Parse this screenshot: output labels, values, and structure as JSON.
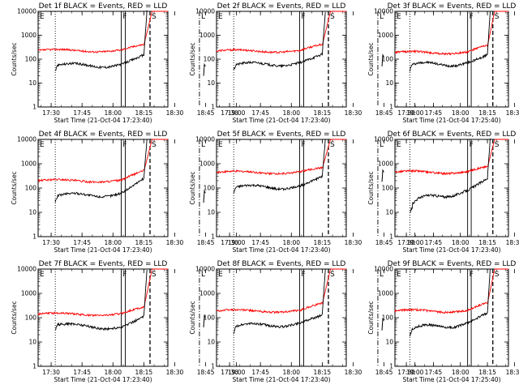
{
  "figure": {
    "panels": [
      {
        "id": 1,
        "title": "Det 1f BLACK = Events, RED = LLD",
        "ylabel": "Counts/sec",
        "xlabel": "Start Time (21-Oct-04 17:23:40)",
        "events_start": 52,
        "events_level_1800": 60,
        "events_at_flare": 150,
        "lld_base": 230,
        "lld_at_flare": 380,
        "events_tail": 20,
        "lld_tail": 210
      },
      {
        "id": 2,
        "title": "Det 2f BLACK = Events, RED = LLD",
        "ylabel": "Counts/sec",
        "xlabel": "Start Time (21-Oct-04 17:23:40)",
        "events_start": 55,
        "events_level_1800": 70,
        "events_at_flare": 160,
        "lld_base": 220,
        "lld_at_flare": 380,
        "events_tail": 50,
        "lld_tail": 230
      },
      {
        "id": 3,
        "title": "Det 3f BLACK = Events, RED = LLD",
        "ylabel": "Counts/sec",
        "xlabel": "Start Time (21-Oct-04 17:25:40)",
        "events_start": 55,
        "events_level_1800": 70,
        "events_at_flare": 150,
        "lld_base": 190,
        "lld_at_flare": 350,
        "events_tail": 25,
        "lld_tail": 160
      },
      {
        "id": 4,
        "title": "Det 4f BLACK = Events, RED = LLD",
        "ylabel": "Counts/sec",
        "xlabel": "Start Time (21-Oct-04 17:23:40)",
        "events_start": 45,
        "events_level_1800": 60,
        "events_at_flare": 250,
        "lld_base": 200,
        "lld_at_flare": 480,
        "events_tail": 25,
        "lld_tail": 170
      },
      {
        "id": 5,
        "title": "Det 5f BLACK = Events, RED = LLD",
        "ylabel": "Counts/sec",
        "xlabel": "Start Time (21-Oct-04 17:23:40)",
        "events_start": 100,
        "events_level_1800": 120,
        "events_at_flare": 300,
        "lld_base": 440,
        "lld_at_flare": 620,
        "events_tail": 180,
        "lld_tail": 500
      },
      {
        "id": 6,
        "title": "Det 6f BLACK = Events, RED = LLD",
        "ylabel": "Counts/sec",
        "xlabel": "Start Time (21-Oct-04 17:23:40)",
        "events_start": 15,
        "events_level_1800": 80,
        "events_at_flare": 250,
        "lld_base": 450,
        "lld_at_flare": 700,
        "events_tail": 25,
        "lld_tail": 460
      },
      {
        "id": 7,
        "title": "Det 7f BLACK = Events, RED = LLD",
        "ylabel": "Counts/sec",
        "xlabel": "Start Time (21-Oct-04 17:23:40)",
        "events_start": 50,
        "events_level_1800": 40,
        "events_at_flare": 110,
        "lld_base": 140,
        "lld_at_flare": 250,
        "events_tail": 40,
        "lld_tail": 140
      },
      {
        "id": 8,
        "title": "Det 8f BLACK = Events, RED = LLD",
        "ylabel": "Counts/sec",
        "xlabel": "Start Time (21-Oct-04 17:23:40)",
        "events_start": 40,
        "events_level_1800": 60,
        "events_at_flare": 130,
        "lld_base": 190,
        "lld_at_flare": 360,
        "events_tail": 30,
        "lld_tail": 160
      },
      {
        "id": 9,
        "title": "Det 9f BLACK = Events, RED = LLD",
        "ylabel": "Counts/sec",
        "xlabel": "Start Time (21-Oct-04 17:25:40)",
        "events_start": 30,
        "events_level_1800": 60,
        "events_at_flare": 160,
        "lld_base": 190,
        "lld_at_flare": 380,
        "events_tail": 25,
        "lld_tail": 160
      }
    ]
  },
  "chart_data": {
    "type": "line",
    "layout": "3x3 grid",
    "scale_y": "log",
    "ylim": [
      1,
      10000
    ],
    "yticks": [
      "1",
      "10",
      "100",
      "1000",
      "10000"
    ],
    "xlim_minutes_after_1723_40": [
      0,
      63
    ],
    "xticks": [
      "17:30",
      "17:45",
      "18:00",
      "18:15",
      "18:30",
      "18:45",
      "19:00"
    ],
    "series_colors": {
      "events": "#000000",
      "lld": "#ff0000"
    },
    "series_description": "BLACK = Events, RED = LLD",
    "markers": [
      {
        "label": "E",
        "time": "17:24",
        "style": "text"
      },
      {
        "label": "",
        "time": "17:32",
        "style": "dotted"
      },
      {
        "label": "F",
        "time": "18:04",
        "style": "solid"
      },
      {
        "label": "",
        "time": "18:06",
        "style": "solid"
      },
      {
        "label": "S",
        "time": "18:18",
        "style": "dashed"
      },
      {
        "label": "L",
        "time": "18:42",
        "style": "dashdot"
      }
    ],
    "flare": {
      "rise_start": "18:15",
      "saturate_level": 10000,
      "fall_time": "18:41"
    }
  }
}
